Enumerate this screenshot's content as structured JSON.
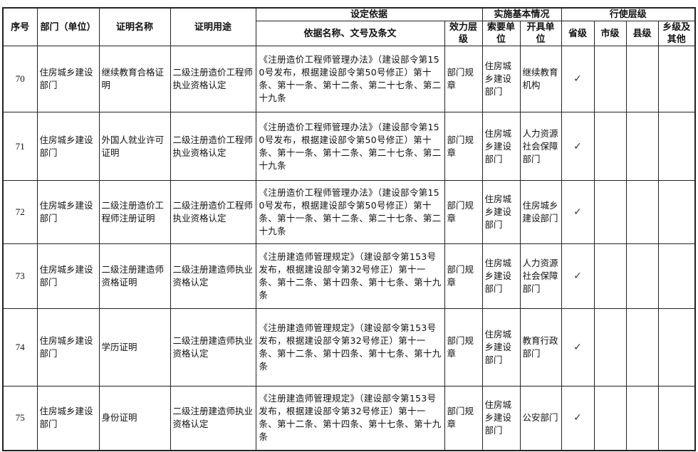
{
  "headers": {
    "seq": "序号",
    "dept": "部门（单位）",
    "cert_name": "证明名称",
    "cert_use": "证明用途",
    "basis_group": "设定依据",
    "basis_doc": "依据名称、文号及条文",
    "basis_level": "效力层级",
    "impl_group": "实施基本情况",
    "impl_requester": "索要单位",
    "impl_issuer": "开具单位",
    "level_group": "行使层级",
    "level_province": "省级",
    "level_city": "市级",
    "level_county": "县级",
    "level_town": "乡级及其他"
  },
  "check_mark": "✓",
  "rows": [
    {
      "seq": "70",
      "dept": "住房城乡建设部门",
      "cert_name": "继续教育合格证明",
      "cert_use": "二级注册造价工程师执业资格认定",
      "basis_doc": "《注册造价工程师管理办法》（建设部令第150号发布，根据建设部令第50号修正）第十条、第十一条、第十二条、第二十七条、第二十九条",
      "basis_level": "部门规章",
      "requester": "住房城乡建设部门",
      "issuer": "继续教育机构",
      "province": "✓",
      "city": "",
      "county": "",
      "town": ""
    },
    {
      "seq": "71",
      "dept": "住房城乡建设部门",
      "cert_name": "外国人就业许可证明",
      "cert_use": "二级注册造价工程师执业资格认定",
      "basis_doc": "《注册造价工程师管理办法》（建设部令第150号发布，根据建设部令第50号修正）第十条、第十一条、第十二条、第二十七条、第二十九条",
      "basis_level": "部门规章",
      "requester": "住房城乡建设部门",
      "issuer": "人力资源社会保障部门",
      "province": "✓",
      "city": "",
      "county": "",
      "town": ""
    },
    {
      "seq": "72",
      "dept": "住房城乡建设部门",
      "cert_name": "二级注册造价工程师注册证明",
      "cert_use": "二级注册造价工程师执业资格认定",
      "basis_doc": "《注册造价工程师管理办法》（建设部令第150号发布，根据建设部令第50号修正）第十条、第十一条、第十二条、第二十七条、第二十九条",
      "basis_level": "部门规章",
      "requester": "住房城乡建设部门",
      "issuer": "住房城乡建设部门",
      "province": "✓",
      "city": "",
      "county": "",
      "town": ""
    },
    {
      "seq": "73",
      "dept": "住房城乡建设部门",
      "cert_name": "二级注册建造师资格证明",
      "cert_use": "二级注册建造师执业资格认定",
      "basis_doc": "《注册建造师管理规定》（建设部令第153号发布，根据建设部令第32号修正）第十一条、第十二条、第十四条、第十七条、第十九条",
      "basis_level": "部门规章",
      "requester": "住房城乡建设部门",
      "issuer": "人力资源社会保障部门",
      "province": "✓",
      "city": "",
      "county": "",
      "town": ""
    },
    {
      "seq": "74",
      "dept": "住房城乡建设部门",
      "cert_name": "学历证明",
      "cert_use": "二级注册建造师执业资格认定",
      "basis_doc": "《注册建造师管理规定》（建设部令第153号发布，根据建设部令第32号修正）第十一条、第十二条、第十四条、第十七条、第十九条",
      "basis_level": "部门规章",
      "requester": "住房城乡建设部门",
      "issuer": "教育行政部门",
      "province": "✓",
      "city": "",
      "county": "",
      "town": ""
    },
    {
      "seq": "75",
      "dept": "住房城乡建设部门",
      "cert_name": "身份证明",
      "cert_use": "二级注册建造师执业资格认定",
      "basis_doc": "《注册建造师管理规定》（建设部令第153号发布，根据建设部令第32号修正）第十一条、第十二条、第十四条、第十七条、第十九条",
      "basis_level": "部门规章",
      "requester": "住房城乡建设部门",
      "issuer": "公安部门",
      "province": "✓",
      "city": "",
      "county": "",
      "town": ""
    }
  ]
}
